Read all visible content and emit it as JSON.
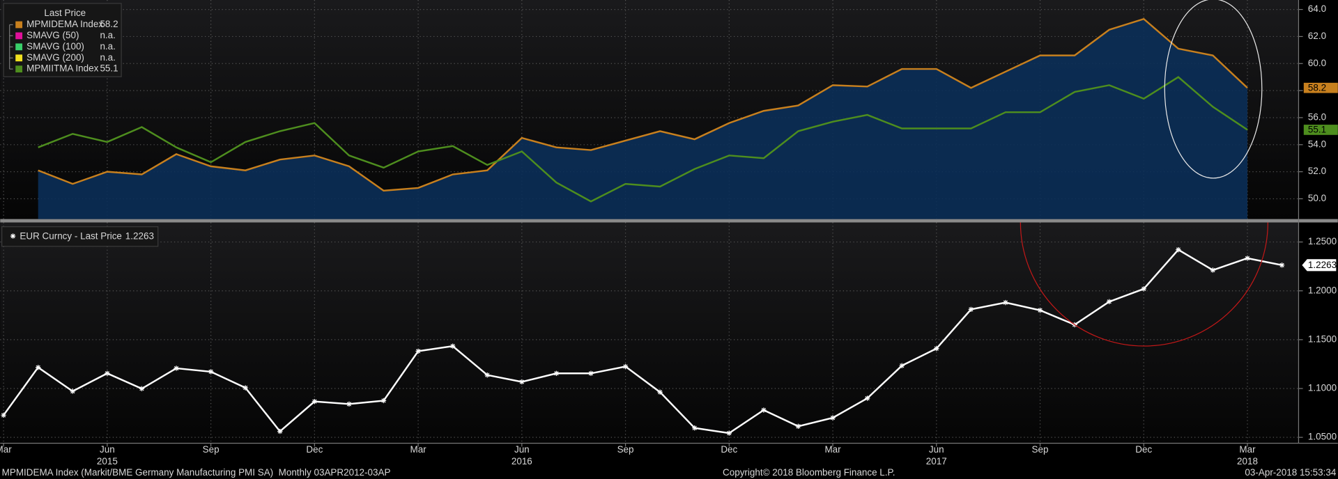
{
  "chart_data": [
    {
      "type": "line",
      "legend_title": "Last Price",
      "ylim": [
        48.5,
        64.7
      ],
      "yticks": [
        {
          "value": 50,
          "label": "50.0"
        },
        {
          "value": 52,
          "label": "52.0"
        },
        {
          "value": 54,
          "label": "54.0"
        },
        {
          "value": 56,
          "label": "56.0"
        },
        {
          "value": 58,
          "label": "58.0"
        },
        {
          "value": 60,
          "label": "60.0"
        },
        {
          "value": 62,
          "label": "62.0"
        },
        {
          "value": 64,
          "label": "64.0"
        }
      ],
      "grid": true,
      "series": [
        {
          "name": "MPMIDEMA Index",
          "color": "#c8801e",
          "area_color": "#0b2f58",
          "values": [
            null,
            52.1,
            51.1,
            52.0,
            51.8,
            53.3,
            52.4,
            52.1,
            52.9,
            53.2,
            52.4,
            50.6,
            50.8,
            51.8,
            52.1,
            54.5,
            53.8,
            53.6,
            54.3,
            55.0,
            54.4,
            55.6,
            56.5,
            56.9,
            58.4,
            58.3,
            59.6,
            59.6,
            58.2,
            59.4,
            60.6,
            60.6,
            62.5,
            63.3,
            61.1,
            60.6,
            58.2,
            null
          ]
        },
        {
          "name": "SMAVG (50)",
          "color": "#e0109a",
          "last_label": "n.a."
        },
        {
          "name": "SMAVG (100)",
          "color": "#39d06a",
          "last_label": "n.a."
        },
        {
          "name": "SMAVG (200)",
          "color": "#f0e020",
          "last_label": "n.a."
        },
        {
          "name": "MPMIITMA Index",
          "color": "#4e8e1e",
          "values": [
            null,
            53.8,
            54.8,
            54.2,
            55.3,
            53.8,
            52.7,
            54.2,
            55.0,
            55.6,
            53.2,
            52.3,
            53.5,
            53.9,
            52.5,
            53.5,
            51.2,
            49.8,
            51.1,
            50.9,
            52.2,
            53.2,
            53.0,
            55.0,
            55.7,
            56.2,
            55.2,
            55.2,
            55.2,
            56.4,
            56.4,
            57.9,
            58.4,
            57.4,
            59.0,
            56.8,
            55.1,
            null
          ]
        }
      ]
    },
    {
      "type": "line",
      "categories": [
        "Mar",
        null,
        null,
        "Jun",
        null,
        null,
        "Sep",
        null,
        null,
        "Dec",
        null,
        null,
        "Mar",
        null,
        null,
        "Jun",
        null,
        null,
        "Sep",
        null,
        null,
        "Dec",
        null,
        null,
        "Mar",
        null,
        null,
        "Jun",
        null,
        null,
        "Sep",
        null,
        null,
        "Dec",
        null,
        null,
        "Mar",
        null
      ],
      "year_labels": [
        null,
        null,
        null,
        "2015",
        null,
        null,
        null,
        null,
        null,
        null,
        null,
        null,
        null,
        null,
        null,
        "2016",
        null,
        null,
        null,
        null,
        null,
        null,
        null,
        null,
        null,
        null,
        null,
        "2017",
        null,
        null,
        null,
        null,
        null,
        null,
        null,
        null,
        "2018",
        null
      ],
      "ylim": [
        1.044,
        1.27
      ],
      "yticks": [
        {
          "value": 1.05,
          "label": "1.0500"
        },
        {
          "value": 1.1,
          "label": "1.1000"
        },
        {
          "value": 1.15,
          "label": "1.1500"
        },
        {
          "value": 1.2,
          "label": "1.2000"
        },
        {
          "value": 1.25,
          "label": "1.2500"
        }
      ],
      "grid": true,
      "series": [
        {
          "name": "EUR Curncy - Last Price",
          "color": "#ffffff",
          "marker": "star",
          "values": [
            1.0727,
            1.1216,
            1.0972,
            1.1155,
            1.0998,
            1.1207,
            1.1172,
            1.1007,
            1.0561,
            1.0867,
            1.0841,
            1.0876,
            1.1382,
            1.1434,
            1.1138,
            1.1068,
            1.1155,
            1.1155,
            1.1225,
            1.0963,
            1.0596,
            1.0543,
            1.0779,
            1.0613,
            1.07,
            1.09,
            1.1234,
            1.1409,
            1.181,
            1.188,
            1.1801,
            1.1653,
            1.1889,
            1.202,
            1.2421,
            1.2212,
            1.2334,
            1.2263
          ]
        }
      ]
    }
  ],
  "footer": {
    "left": "MPMIDEMA Index (Markit/BME Germany Manufacturing PMI SA)  Monthly 03APR2012-03AP",
    "center": "Copyright© 2018 Bloomberg Finance L.P.",
    "right": "03-Apr-2018 15:53:34"
  }
}
